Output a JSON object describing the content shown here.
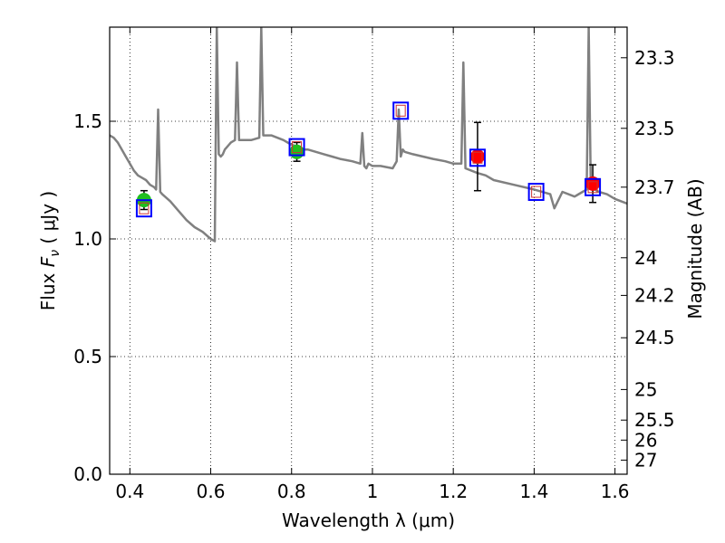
{
  "chart_data": {
    "type": "line",
    "xlabel": "Wavelength  λ (μm)",
    "ylabel": "Flux  F_ν  ( μJy )",
    "ylabel_right": "Magnitude (AB)",
    "xlim": [
      0.35,
      1.63
    ],
    "ylim": [
      0.0,
      1.9
    ],
    "x_ticks": [
      0.4,
      0.6,
      0.8,
      1.0,
      1.2,
      1.4,
      1.6
    ],
    "x_tick_labels": [
      "0.4",
      "0.6",
      "0.8",
      "1",
      "1.2",
      "1.4",
      "1.6"
    ],
    "y_ticks": [
      0.0,
      0.5,
      1.0,
      1.5
    ],
    "y_tick_labels": [
      "0.0",
      "0.5",
      "1.0",
      "1.5"
    ],
    "right_ticks": [
      {
        "label": "23.3",
        "flux": 1.77
      },
      {
        "label": "23.5",
        "flux": 1.47
      },
      {
        "label": "23.7",
        "flux": 1.22
      },
      {
        "label": "24",
        "flux": 0.92
      },
      {
        "label": "24.2",
        "flux": 0.76
      },
      {
        "label": "24.5",
        "flux": 0.58
      },
      {
        "label": "25",
        "flux": 0.36
      },
      {
        "label": "25.5",
        "flux": 0.23
      },
      {
        "label": "26",
        "flux": 0.145
      },
      {
        "label": "27",
        "flux": 0.06
      }
    ],
    "grid": true,
    "colors": {
      "model": "#808080",
      "observed_optical": "#1fbf1f",
      "observed_nir": "#ff0000",
      "model_box": "#0000ff",
      "model_box_inner": "#cc3333"
    },
    "series": [
      {
        "kind": "model-spectrum",
        "x": [
          0.35,
          0.36,
          0.37,
          0.38,
          0.39,
          0.4,
          0.41,
          0.42,
          0.43,
          0.44,
          0.45,
          0.46,
          0.465,
          0.47,
          0.475,
          0.48,
          0.5,
          0.52,
          0.54,
          0.56,
          0.58,
          0.6,
          0.61,
          0.615,
          0.62,
          0.625,
          0.63,
          0.635,
          0.64,
          0.645,
          0.65,
          0.66,
          0.665,
          0.67,
          0.68,
          0.7,
          0.72,
          0.725,
          0.73,
          0.75,
          0.78,
          0.8,
          0.82,
          0.83,
          0.84,
          0.86,
          0.88,
          0.9,
          0.92,
          0.95,
          0.97,
          0.975,
          0.98,
          0.985,
          0.99,
          1.0,
          1.02,
          1.05,
          1.06,
          1.065,
          1.07,
          1.075,
          1.08,
          1.1,
          1.15,
          1.18,
          1.2,
          1.22,
          1.225,
          1.23,
          1.26,
          1.28,
          1.3,
          1.35,
          1.4,
          1.44,
          1.45,
          1.47,
          1.5,
          1.52,
          1.53,
          1.535,
          1.54,
          1.56,
          1.58,
          1.6,
          1.63
        ],
        "y": [
          1.44,
          1.43,
          1.41,
          1.38,
          1.35,
          1.32,
          1.29,
          1.27,
          1.26,
          1.25,
          1.23,
          1.22,
          1.21,
          1.55,
          1.2,
          1.19,
          1.16,
          1.12,
          1.08,
          1.05,
          1.03,
          1.0,
          0.99,
          1.9,
          1.36,
          1.35,
          1.36,
          1.38,
          1.39,
          1.4,
          1.41,
          1.42,
          1.75,
          1.42,
          1.42,
          1.42,
          1.43,
          1.9,
          1.44,
          1.44,
          1.42,
          1.4,
          1.39,
          1.38,
          1.38,
          1.37,
          1.36,
          1.35,
          1.34,
          1.33,
          1.32,
          1.45,
          1.31,
          1.3,
          1.32,
          1.31,
          1.31,
          1.3,
          1.33,
          1.55,
          1.35,
          1.38,
          1.37,
          1.36,
          1.34,
          1.33,
          1.32,
          1.32,
          1.75,
          1.3,
          1.28,
          1.27,
          1.25,
          1.23,
          1.21,
          1.19,
          1.13,
          1.2,
          1.18,
          1.2,
          1.21,
          1.9,
          1.22,
          1.2,
          1.19,
          1.17,
          1.15
        ]
      },
      {
        "kind": "observed",
        "name": "",
        "color": "#1fbf1f",
        "points": [
          {
            "x": 0.435,
            "y": 1.165,
            "err": 0.04
          },
          {
            "x": 0.813,
            "y": 1.37,
            "err": 0.04
          }
        ]
      },
      {
        "kind": "observed",
        "name": "",
        "color": "#ff0000",
        "points": [
          {
            "x": 1.26,
            "y": 1.35,
            "err": 0.145
          },
          {
            "x": 1.545,
            "y": 1.235,
            "err": 0.08
          }
        ]
      },
      {
        "kind": "model-boxes",
        "points": [
          {
            "x": 0.435,
            "y": 1.13,
            "filled": false
          },
          {
            "x": 0.813,
            "y": 1.39,
            "filled": false
          },
          {
            "x": 1.07,
            "y": 1.545,
            "filled": false
          },
          {
            "x": 1.26,
            "y": 1.345,
            "filled": false
          },
          {
            "x": 1.405,
            "y": 1.2,
            "filled": false
          },
          {
            "x": 1.545,
            "y": 1.22,
            "filled": false
          }
        ]
      }
    ]
  }
}
